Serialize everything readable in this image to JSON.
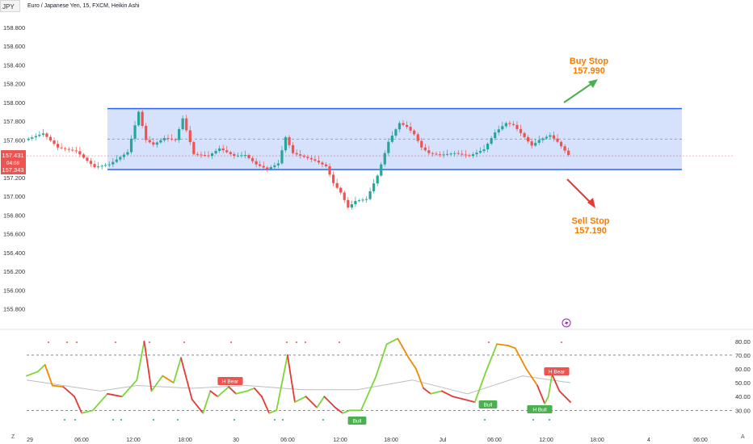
{
  "header": {
    "symbol_tab": "JPY",
    "title": "Euro / Japanese Yen, 15, FXCM, Heikin Ashi"
  },
  "colors": {
    "up": "#26a69a",
    "down": "#ef5350",
    "range_fill": "#cfdcfb",
    "range_border": "#2962ff",
    "annotation": "#f57c00",
    "buy_arrow": "#4caf50",
    "sell_arrow": "#e53935",
    "badge_red": "#ef5350",
    "badge_green": "#4caf50"
  },
  "price_badge": {
    "value": "157.431",
    "timer": "04:08",
    "low_value": "157.343"
  },
  "chart_data": [
    {
      "type": "candlestick",
      "title": "",
      "y_axis": {
        "ticks": [
          "158.800",
          "158.600",
          "158.400",
          "158.200",
          "158.000",
          "157.800",
          "157.600",
          "157.400",
          "157.200",
          "157.000",
          "156.800",
          "156.600",
          "156.400",
          "156.200",
          "156.000",
          "155.800"
        ],
        "range": [
          155.65,
          158.92
        ]
      },
      "x_axis": {
        "ticks": [
          "29",
          "06:00",
          "12:00",
          "18:00",
          "30",
          "06:00",
          "12:00",
          "18:00",
          "Jul",
          "06:00",
          "12:00",
          "18:00",
          "4",
          "06:00"
        ]
      },
      "path": [
        [
          0,
          157.6
        ],
        [
          5,
          157.67
        ],
        [
          9,
          157.52
        ],
        [
          14,
          157.48
        ],
        [
          19,
          157.31
        ],
        [
          23,
          157.34
        ],
        [
          28,
          157.47
        ],
        [
          31,
          157.9
        ],
        [
          33,
          157.6
        ],
        [
          35,
          157.55
        ],
        [
          38,
          157.62
        ],
        [
          41,
          157.6
        ],
        [
          43,
          157.83
        ],
        [
          46,
          157.45
        ],
        [
          50,
          157.43
        ],
        [
          53,
          157.51
        ],
        [
          57,
          157.43
        ],
        [
          60,
          157.44
        ],
        [
          63,
          157.34
        ],
        [
          66,
          157.29
        ],
        [
          69,
          157.35
        ],
        [
          71,
          157.63
        ],
        [
          73,
          157.46
        ],
        [
          76,
          157.42
        ],
        [
          79,
          157.38
        ],
        [
          82,
          157.32
        ],
        [
          84,
          157.14
        ],
        [
          86,
          157.04
        ],
        [
          88,
          156.88
        ],
        [
          90,
          156.95
        ],
        [
          93,
          156.97
        ],
        [
          96,
          157.22
        ],
        [
          99,
          157.58
        ],
        [
          102,
          157.78
        ],
        [
          104,
          157.74
        ],
        [
          106,
          157.66
        ],
        [
          108,
          157.52
        ],
        [
          110,
          157.46
        ],
        [
          113,
          157.44
        ],
        [
          117,
          157.46
        ],
        [
          121,
          157.43
        ],
        [
          125,
          157.5
        ],
        [
          128,
          157.68
        ],
        [
          131,
          157.78
        ],
        [
          133,
          157.76
        ],
        [
          136,
          157.63
        ],
        [
          138,
          157.54
        ],
        [
          140,
          157.6
        ],
        [
          143,
          157.65
        ],
        [
          145,
          157.58
        ],
        [
          148,
          157.44
        ]
      ],
      "resistance": 157.935,
      "support": 157.285,
      "midline": 157.61,
      "current_line": 157.431,
      "annotations": [
        {
          "text": "Buy Stop",
          "value": "157.990"
        },
        {
          "text": "Sell Stop",
          "value": "157.190"
        }
      ]
    },
    {
      "type": "line",
      "title": "",
      "y_axis": {
        "ticks": [
          "80.00",
          "70.00",
          "60.00",
          "50.00",
          "40.00",
          "30.00"
        ],
        "range": [
          22,
          84
        ]
      },
      "levels": [
        70,
        30
      ],
      "series": [
        {
          "values": [
            [
              0,
              55
            ],
            [
              3,
              58
            ],
            [
              5,
              63
            ],
            [
              7,
              48
            ],
            [
              10,
              47
            ],
            [
              13,
              40
            ],
            [
              15,
              28
            ],
            [
              18,
              30
            ],
            [
              22,
              42
            ],
            [
              26,
              40
            ],
            [
              30,
              52
            ],
            [
              32,
              80
            ],
            [
              34,
              44
            ],
            [
              37,
              55
            ],
            [
              40,
              50
            ],
            [
              42,
              68
            ],
            [
              45,
              38
            ],
            [
              48,
              28
            ],
            [
              50,
              44
            ],
            [
              52,
              40
            ],
            [
              55,
              47
            ],
            [
              57,
              42
            ],
            [
              60,
              44
            ],
            [
              62,
              46
            ],
            [
              64,
              40
            ],
            [
              66,
              28
            ],
            [
              68,
              30
            ],
            [
              71,
              70
            ],
            [
              73,
              36
            ],
            [
              76,
              40
            ],
            [
              79,
              32
            ],
            [
              81,
              40
            ],
            [
              84,
              32
            ],
            [
              86,
              28
            ],
            [
              88,
              30
            ],
            [
              91,
              30
            ],
            [
              93,
              42
            ],
            [
              95,
              54
            ],
            [
              98,
              78
            ],
            [
              101,
              82
            ],
            [
              104,
              68
            ],
            [
              106,
              60
            ],
            [
              108,
              46
            ],
            [
              110,
              42
            ],
            [
              113,
              44
            ],
            [
              116,
              40
            ],
            [
              119,
              38
            ],
            [
              122,
              36
            ],
            [
              125,
              58
            ],
            [
              128,
              78
            ],
            [
              131,
              77
            ],
            [
              133,
              75
            ],
            [
              136,
              60
            ],
            [
              139,
              48
            ],
            [
              141,
              35
            ],
            [
              142,
              40
            ],
            [
              143,
              56
            ],
            [
              145,
              44
            ],
            [
              148,
              36
            ]
          ]
        },
        {
          "values": [
            [
              0,
              52
            ],
            [
              20,
              44
            ],
            [
              30,
              48
            ],
            [
              45,
              46
            ],
            [
              60,
              48
            ],
            [
              75,
              45
            ],
            [
              90,
              45
            ],
            [
              105,
              52
            ],
            [
              120,
              42
            ],
            [
              135,
              55
            ],
            [
              148,
              50
            ]
          ]
        }
      ],
      "badges": [
        {
          "text": "H Bear",
          "kind": "bear"
        },
        {
          "text": "Bull",
          "kind": "bull"
        },
        {
          "text": "Bull",
          "kind": "bull"
        },
        {
          "text": "H Bull",
          "kind": "bull"
        },
        {
          "text": "H Bear",
          "kind": "bear"
        }
      ]
    }
  ],
  "corner": {
    "left": "Z",
    "right": "A"
  }
}
